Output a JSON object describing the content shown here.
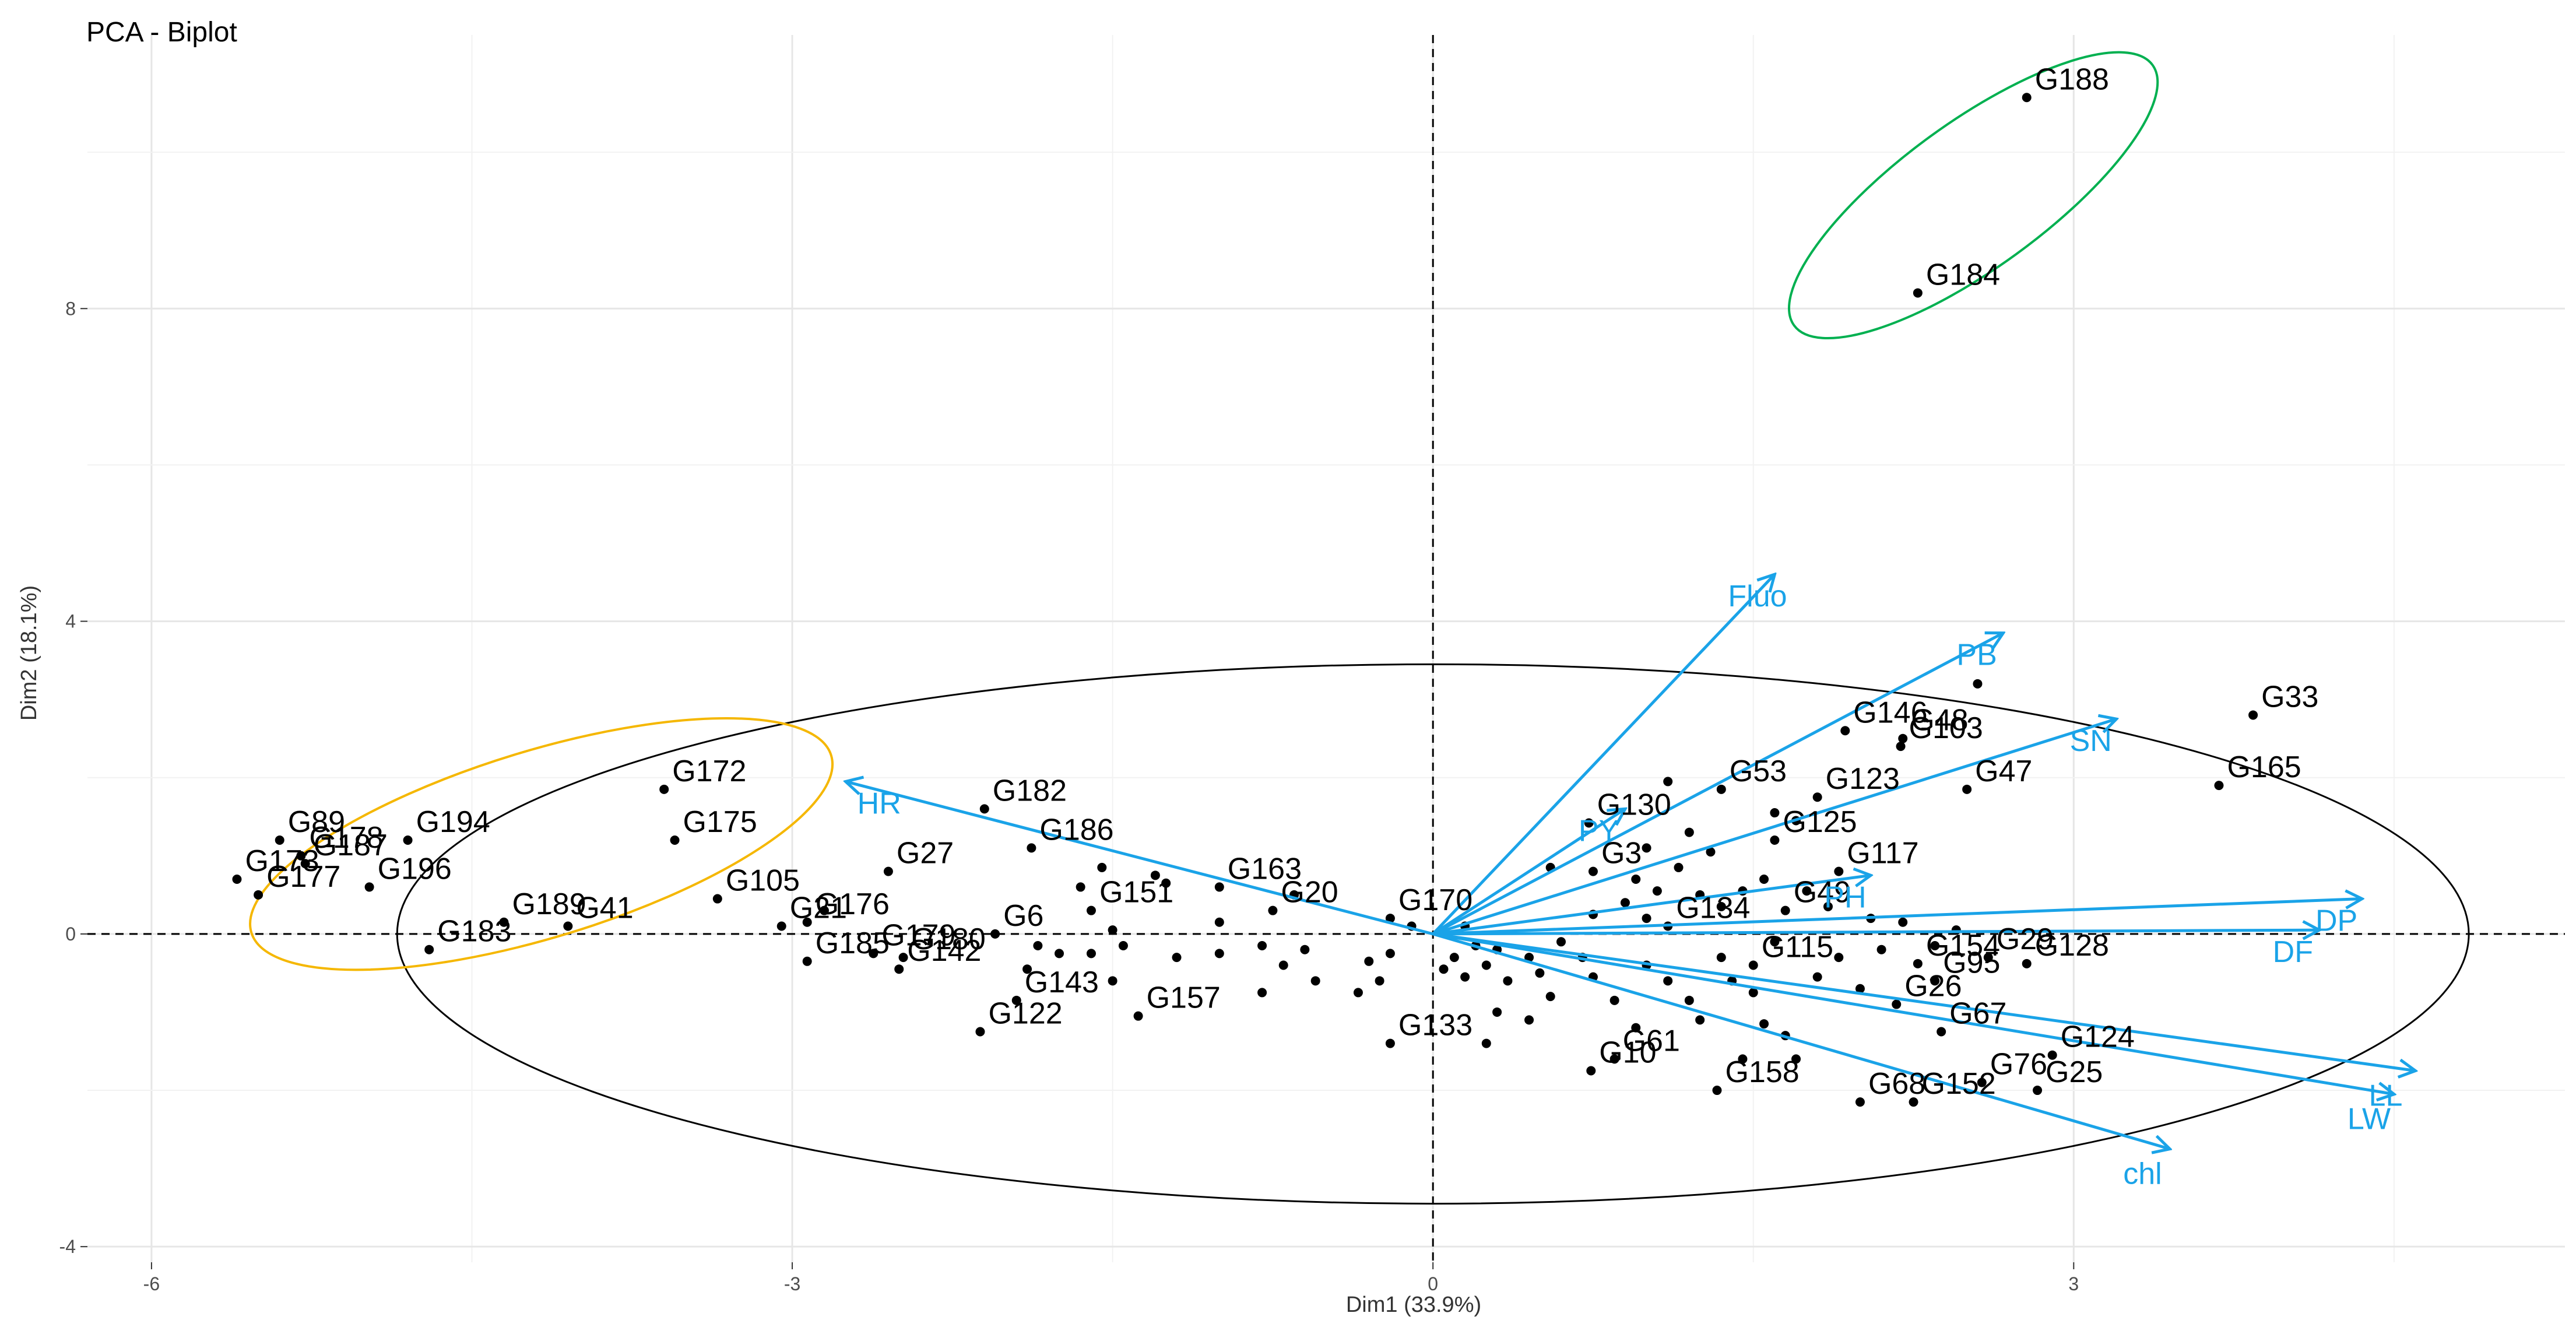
{
  "chart_data": {
    "type": "scatter",
    "title": "PCA - Biplot",
    "xlabel": "Dim1 (33.9%)",
    "ylabel": "Dim2 (18.1%)",
    "xlim": [
      -6.3,
      5.3
    ],
    "ylim": [
      -4.2,
      11.5
    ],
    "xticks": [
      -6,
      -3,
      0,
      3
    ],
    "yticks": [
      -4,
      0,
      4,
      8
    ],
    "grid": true,
    "colors": {
      "points": "#000000",
      "arrows": "#1aa3e8",
      "main_ellipse": "#000000",
      "left_ellipse": "#f5b700",
      "top_ellipse": "#00b050"
    },
    "labeled_points": [
      {
        "label": "G188",
        "x": 2.78,
        "y": 10.7
      },
      {
        "label": "G184",
        "x": 2.27,
        "y": 8.2
      },
      {
        "label": "G33",
        "x": 3.84,
        "y": 2.8
      },
      {
        "label": "G165",
        "x": 3.68,
        "y": 1.9
      },
      {
        "label": "G146",
        "x": 1.93,
        "y": 2.6
      },
      {
        "label": "G48",
        "x": 2.2,
        "y": 2.5
      },
      {
        "label": "G103",
        "x": 2.19,
        "y": 2.4
      },
      {
        "label": "G47",
        "x": 2.5,
        "y": 1.85
      },
      {
        "label": "G123",
        "x": 1.8,
        "y": 1.75
      },
      {
        "label": "G53",
        "x": 1.35,
        "y": 1.85
      },
      {
        "label": "G130",
        "x": 0.73,
        "y": 1.42
      },
      {
        "label": "G3",
        "x": 0.75,
        "y": 0.8
      },
      {
        "label": "G125",
        "x": 1.6,
        "y": 1.2
      },
      {
        "label": "G117",
        "x": 1.9,
        "y": 0.8
      },
      {
        "label": "G134",
        "x": 1.1,
        "y": 0.1
      },
      {
        "label": "G49",
        "x": 1.65,
        "y": 0.3
      },
      {
        "label": "G115",
        "x": 1.5,
        "y": -0.4
      },
      {
        "label": "G154",
        "x": 2.27,
        "y": -0.38
      },
      {
        "label": "G29",
        "x": 2.6,
        "y": -0.3
      },
      {
        "label": "G95",
        "x": 2.35,
        "y": -0.6
      },
      {
        "label": "G128",
        "x": 2.78,
        "y": -0.38
      },
      {
        "label": "G26",
        "x": 2.17,
        "y": -0.9
      },
      {
        "label": "G67",
        "x": 2.38,
        "y": -1.25
      },
      {
        "label": "G124",
        "x": 2.9,
        "y": -1.55
      },
      {
        "label": "G76",
        "x": 2.57,
        "y": -1.9
      },
      {
        "label": "G25",
        "x": 2.83,
        "y": -2.0
      },
      {
        "label": "G68",
        "x": 2.0,
        "y": -2.15
      },
      {
        "label": "G152",
        "x": 2.25,
        "y": -2.15
      },
      {
        "label": "G158",
        "x": 1.33,
        "y": -2.0
      },
      {
        "label": "G61",
        "x": 0.85,
        "y": -1.6
      },
      {
        "label": "G10",
        "x": 0.74,
        "y": -1.75
      },
      {
        "label": "G133",
        "x": -0.2,
        "y": -1.4
      },
      {
        "label": "G170",
        "x": -0.2,
        "y": 0.2
      },
      {
        "label": "G163",
        "x": -1.0,
        "y": 0.6
      },
      {
        "label": "G20",
        "x": -0.75,
        "y": 0.3
      },
      {
        "label": "G157",
        "x": -1.38,
        "y": -1.05
      },
      {
        "label": "G151",
        "x": -1.6,
        "y": 0.3
      },
      {
        "label": "G6",
        "x": -2.05,
        "y": 0.0
      },
      {
        "label": "G186",
        "x": -1.88,
        "y": 1.1
      },
      {
        "label": "G182",
        "x": -2.1,
        "y": 1.6
      },
      {
        "label": "G180",
        "x": -2.48,
        "y": -0.3
      },
      {
        "label": "G143",
        "x": -1.95,
        "y": -0.85
      },
      {
        "label": "G142",
        "x": -2.5,
        "y": -0.45
      },
      {
        "label": "G122",
        "x": -2.12,
        "y": -1.25
      },
      {
        "label": "G27",
        "x": -2.55,
        "y": 0.8
      },
      {
        "label": "G179",
        "x": -2.62,
        "y": -0.25
      },
      {
        "label": "G176",
        "x": -2.93,
        "y": 0.15
      },
      {
        "label": "G21",
        "x": -3.05,
        "y": 0.1
      },
      {
        "label": "G185",
        "x": -2.93,
        "y": -0.35
      },
      {
        "label": "G105",
        "x": -3.35,
        "y": 0.45
      },
      {
        "label": "G41",
        "x": -4.05,
        "y": 0.1
      },
      {
        "label": "G189",
        "x": -4.35,
        "y": 0.15
      },
      {
        "label": "G175",
        "x": -3.55,
        "y": 1.2
      },
      {
        "label": "G172",
        "x": -3.6,
        "y": 1.85
      },
      {
        "label": "G194",
        "x": -4.8,
        "y": 1.2
      },
      {
        "label": "G178",
        "x": -5.3,
        "y": 1.0
      },
      {
        "label": "G89",
        "x": -5.4,
        "y": 1.2
      },
      {
        "label": "G187",
        "x": -5.28,
        "y": 0.9
      },
      {
        "label": "G173",
        "x": -5.6,
        "y": 0.7
      },
      {
        "label": "G177",
        "x": -5.5,
        "y": 0.5
      },
      {
        "label": "G196",
        "x": -4.98,
        "y": 0.6
      },
      {
        "label": "G183",
        "x": -4.7,
        "y": -0.2
      }
    ],
    "variables": [
      {
        "label": "Fluo",
        "x": 1.6,
        "y": 4.6
      },
      {
        "label": "PB",
        "x": 2.67,
        "y": 3.85
      },
      {
        "label": "SN",
        "x": 3.2,
        "y": 2.75
      },
      {
        "label": "PY",
        "x": 0.9,
        "y": 1.6
      },
      {
        "label": "PH",
        "x": 2.05,
        "y": 0.75
      },
      {
        "label": "DP",
        "x": 4.35,
        "y": 0.45
      },
      {
        "label": "DF",
        "x": 4.15,
        "y": 0.05
      },
      {
        "label": "LL",
        "x": 4.6,
        "y": -1.75
      },
      {
        "label": "LW",
        "x": 4.5,
        "y": -2.05
      },
      {
        "label": "chl",
        "x": 3.45,
        "y": -2.75
      },
      {
        "label": "HR",
        "x": -2.75,
        "y": 1.95
      }
    ],
    "unlabeled_points": [
      [
        -1.55,
        0.85
      ],
      [
        -1.3,
        0.75
      ],
      [
        -1.25,
        0.65
      ],
      [
        -1.65,
        0.6
      ],
      [
        -1.5,
        0.05
      ],
      [
        -1.45,
        -0.15
      ],
      [
        -1.6,
        -0.25
      ],
      [
        -1.75,
        -0.25
      ],
      [
        -1.85,
        -0.15
      ],
      [
        -1.9,
        -0.45
      ],
      [
        -1.5,
        -0.6
      ],
      [
        -1.2,
        -0.3
      ],
      [
        -1.0,
        -0.25
      ],
      [
        -0.8,
        -0.15
      ],
      [
        -0.7,
        -0.4
      ],
      [
        -0.6,
        -0.2
      ],
      [
        -0.3,
        -0.35
      ],
      [
        -0.25,
        -0.6
      ],
      [
        -0.35,
        -0.75
      ],
      [
        -0.55,
        -0.6
      ],
      [
        -0.8,
        -0.75
      ],
      [
        -0.2,
        -0.25
      ],
      [
        -0.1,
        0.1
      ],
      [
        -1.0,
        0.15
      ],
      [
        -0.65,
        0.5
      ],
      [
        0.1,
        -0.3
      ],
      [
        0.15,
        -0.55
      ],
      [
        0.25,
        -0.4
      ],
      [
        0.3,
        -0.2
      ],
      [
        0.35,
        -0.6
      ],
      [
        0.45,
        -0.3
      ],
      [
        0.5,
        -0.5
      ],
      [
        0.55,
        -0.8
      ],
      [
        0.3,
        -1.0
      ],
      [
        0.45,
        -1.1
      ],
      [
        0.25,
        -1.4
      ],
      [
        0.6,
        -0.1
      ],
      [
        0.7,
        -0.3
      ],
      [
        0.75,
        -0.55
      ],
      [
        0.85,
        -0.85
      ],
      [
        0.95,
        -1.2
      ],
      [
        1.0,
        -0.4
      ],
      [
        1.1,
        -0.6
      ],
      [
        1.2,
        -0.85
      ],
      [
        1.25,
        -1.1
      ],
      [
        1.35,
        -0.3
      ],
      [
        1.4,
        -0.6
      ],
      [
        1.5,
        -0.75
      ],
      [
        1.55,
        -1.15
      ],
      [
        1.65,
        -1.3
      ],
      [
        1.45,
        -1.6
      ],
      [
        1.7,
        -1.6
      ],
      [
        1.8,
        -0.55
      ],
      [
        1.9,
        -0.3
      ],
      [
        2.0,
        -0.7
      ],
      [
        1.6,
        -0.1
      ],
      [
        0.75,
        0.25
      ],
      [
        0.9,
        0.4
      ],
      [
        1.0,
        0.2
      ],
      [
        1.05,
        0.55
      ],
      [
        1.25,
        0.5
      ],
      [
        1.35,
        0.35
      ],
      [
        1.45,
        0.55
      ],
      [
        1.15,
        0.85
      ],
      [
        1.3,
        1.05
      ],
      [
        1.55,
        0.7
      ],
      [
        1.75,
        0.55
      ],
      [
        1.85,
        0.35
      ],
      [
        1.6,
        1.55
      ],
      [
        1.7,
        1.45
      ],
      [
        1.2,
        1.3
      ],
      [
        1.0,
        1.1
      ],
      [
        0.55,
        0.85
      ],
      [
        0.95,
        0.7
      ],
      [
        1.1,
        1.95
      ],
      [
        2.05,
        0.2
      ],
      [
        2.1,
        -0.2
      ],
      [
        2.2,
        0.15
      ],
      [
        2.45,
        0.05
      ],
      [
        2.35,
        -0.15
      ],
      [
        0.15,
        0.1
      ],
      [
        0.2,
        -0.15
      ],
      [
        0.05,
        -0.45
      ],
      [
        2.55,
        3.2
      ],
      [
        -2.85,
        0.3
      ]
    ]
  }
}
